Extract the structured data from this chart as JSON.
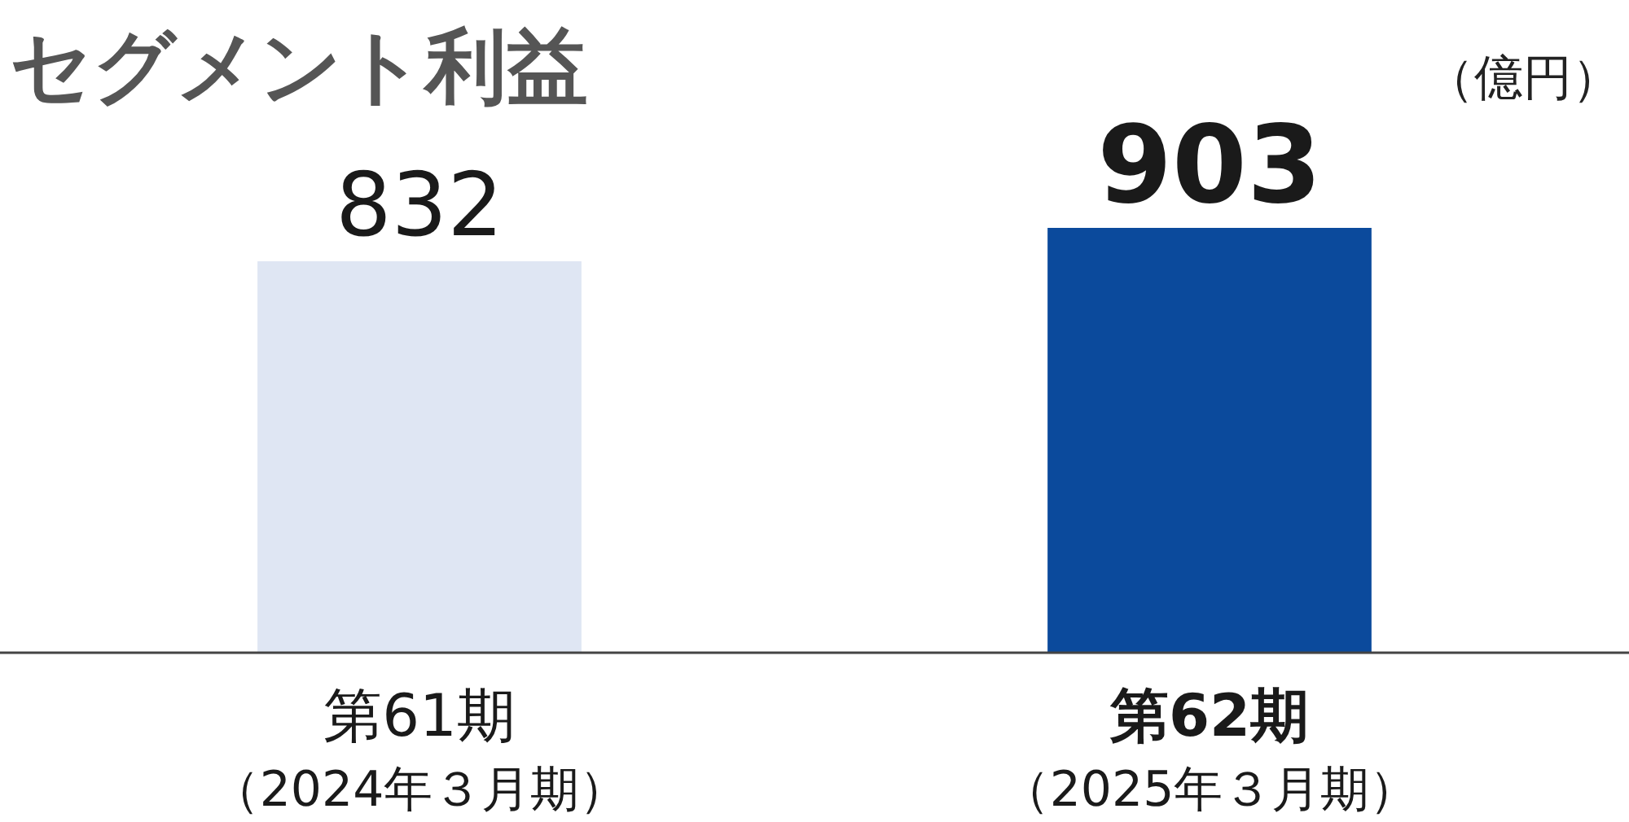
{
  "chart_data": {
    "type": "bar",
    "title": "セグメント利益",
    "ylabel": "（億円）",
    "categories": [
      "第61期（2024年３月期）",
      "第62期（2025年３月期）"
    ],
    "values": [
      832,
      903
    ],
    "colors": [
      "#dfe6f3",
      "#0b4a9c"
    ],
    "data_labels": true
  }
}
